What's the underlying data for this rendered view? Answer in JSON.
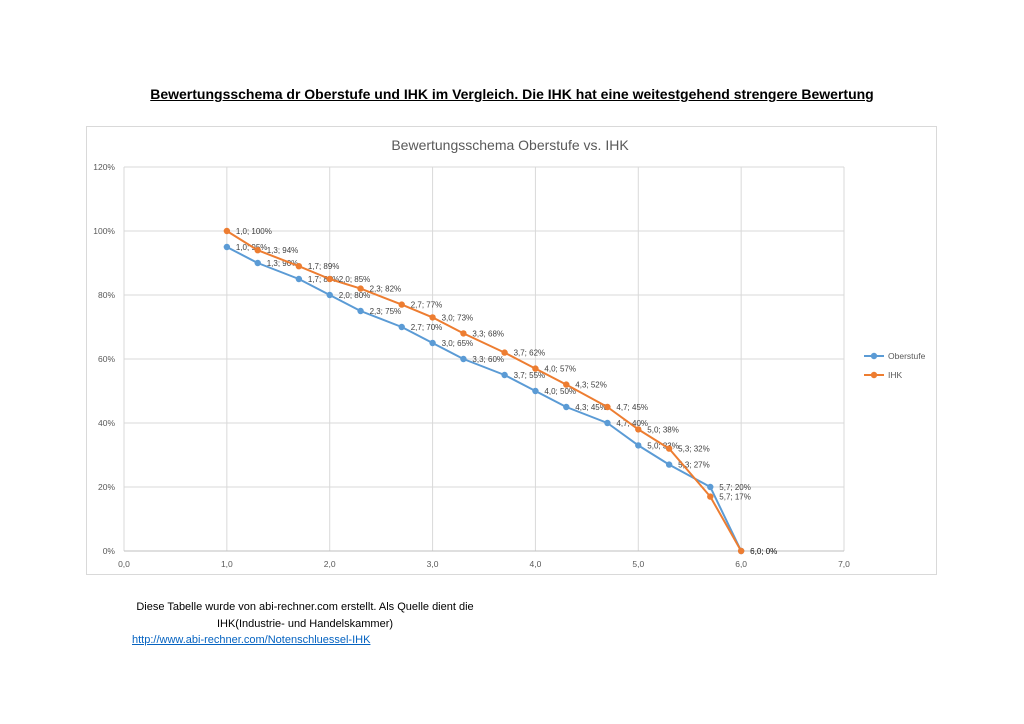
{
  "document": {
    "title": "Bewertungsschema dr Oberstufe und IHK im Vergleich. Die IHK hat eine weitestgehend strengere Bewertung",
    "note_line1": "Diese Tabelle wurde von abi-rechner.com erstellt. Als Quelle dient die",
    "note_line2": "IHK(Industrie- und Handelskammer)",
    "link_text": "http://www.abi-rechner.com/Notenschluessel-IHK"
  },
  "chart_data": {
    "type": "line",
    "title": "Bewertungsschema Oberstufe vs. IHK",
    "xlabel": "",
    "ylabel": "",
    "xlim": [
      0,
      7
    ],
    "ylim": [
      0,
      120
    ],
    "x_ticks": [
      "0,0",
      "1,0",
      "2,0",
      "3,0",
      "4,0",
      "5,0",
      "6,0",
      "7,0"
    ],
    "y_ticks": [
      "0%",
      "20%",
      "40%",
      "60%",
      "80%",
      "100%",
      "120%"
    ],
    "grid": true,
    "legend": "right",
    "series": [
      {
        "name": "Oberstufe",
        "color": "#5b9bd5",
        "x": [
          1.0,
          1.3,
          1.7,
          2.0,
          2.3,
          2.7,
          3.0,
          3.3,
          3.7,
          4.0,
          4.3,
          4.7,
          5.0,
          5.3,
          5.7,
          6.0
        ],
        "y": [
          95,
          90,
          85,
          80,
          75,
          70,
          65,
          60,
          55,
          50,
          45,
          40,
          33,
          27,
          20,
          0
        ],
        "labels": [
          "1,0; 95%",
          "1,3; 90%",
          "1,7; 85%",
          "2,0; 80%",
          "2,3; 75%",
          "2,7; 70%",
          "3,0; 65%",
          "3,3; 60%",
          "3,7; 55%",
          "4,0; 50%",
          "4,3; 45%",
          "4,7; 40%",
          "5,0; 33%",
          "5,3; 27%",
          "5,7; 20%",
          "6,0; 0%"
        ]
      },
      {
        "name": "IHK",
        "color": "#ed7d31",
        "x": [
          1.0,
          1.3,
          1.7,
          2.0,
          2.3,
          2.7,
          3.0,
          3.3,
          3.7,
          4.0,
          4.3,
          4.7,
          5.0,
          5.3,
          5.7,
          6.0
        ],
        "y": [
          100,
          94,
          89,
          85,
          82,
          77,
          73,
          68,
          62,
          57,
          52,
          45,
          38,
          32,
          17,
          0
        ],
        "labels": [
          "1,0; 100%",
          "1,3; 94%",
          "1,7; 89%",
          "2,0; 85%",
          "2,3; 82%",
          "2,7; 77%",
          "3,0; 73%",
          "3,3; 68%",
          "3,7; 62%",
          "4,0; 57%",
          "4,3; 52%",
          "4,7; 45%",
          "5,0; 38%",
          "5,3; 32%",
          "5,7; 17%",
          "6,0; 0%"
        ]
      }
    ]
  }
}
